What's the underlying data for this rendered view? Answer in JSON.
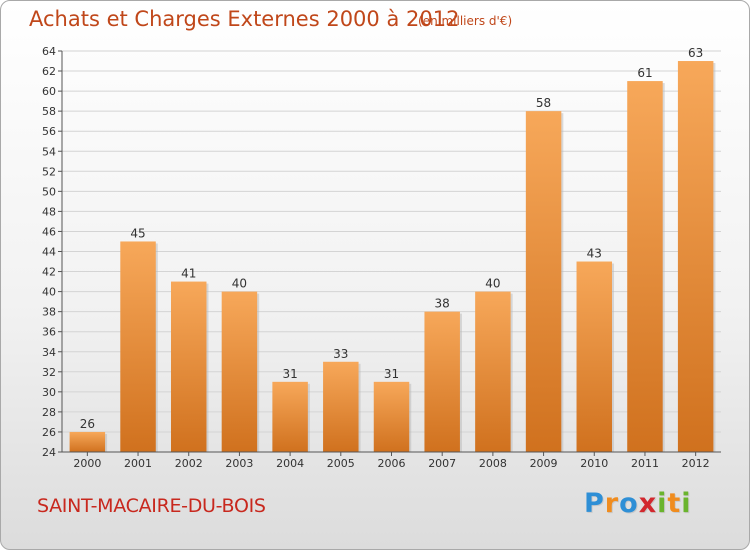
{
  "header": {
    "title": "Achats et Charges Externes 2000 à 2012",
    "unit": "(en milliers d'€)"
  },
  "footer": {
    "commune": "SAINT-MACAIRE-DU-BOIS",
    "logo": "Proxiti",
    "logo_letters": [
      {
        "ch": "P",
        "color": "#2e8fd6"
      },
      {
        "ch": "r",
        "color": "#f08c1e"
      },
      {
        "ch": "o",
        "color": "#2e8fd6"
      },
      {
        "ch": "x",
        "color": "#d2282e"
      },
      {
        "ch": "i",
        "color": "#6ab42d"
      },
      {
        "ch": "t",
        "color": "#f08c1e"
      },
      {
        "ch": "i",
        "color": "#6ab42d"
      }
    ]
  },
  "colors": {
    "bar_light": "#f7a85a",
    "bar_dark": "#d0711e",
    "grid": "#d4d4d4",
    "axis": "#555555",
    "accent": "#c0471a"
  },
  "chart_data": {
    "type": "bar",
    "title": "Achats et Charges Externes 2000 à 2012",
    "subtitle": "(en milliers d'€)",
    "xlabel": "",
    "ylabel": "",
    "categories": [
      "2000",
      "2001",
      "2002",
      "2003",
      "2004",
      "2005",
      "2006",
      "2007",
      "2008",
      "2009",
      "2010",
      "2011",
      "2012"
    ],
    "values": [
      26,
      45,
      41,
      40,
      31,
      33,
      31,
      38,
      40,
      58,
      43,
      61,
      63
    ],
    "ylim": [
      24,
      64
    ],
    "ytick_step": 2,
    "grid": true,
    "legend": "none"
  }
}
